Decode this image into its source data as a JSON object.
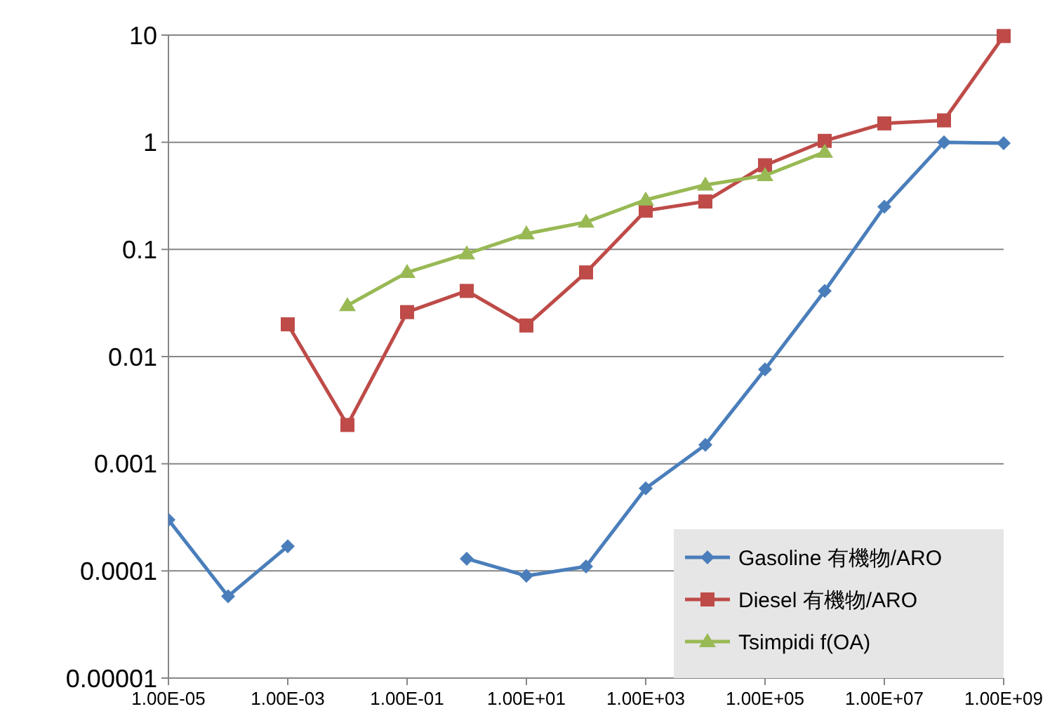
{
  "chart_data": {
    "type": "line",
    "log": "xy",
    "xlim": [
      1e-05,
      1000000000.0
    ],
    "ylim": [
      1e-05,
      10
    ],
    "xticks": [
      {
        "value": 1e-05,
        "label": "1.00E-05"
      },
      {
        "value": 0.001,
        "label": "1.00E-03"
      },
      {
        "value": 0.1,
        "label": "1.00E-01"
      },
      {
        "value": 10,
        "label": "1.00E+01"
      },
      {
        "value": 1000,
        "label": "1.00E+03"
      },
      {
        "value": 100000,
        "label": "1.00E+05"
      },
      {
        "value": 10000000,
        "label": "1.00E+07"
      },
      {
        "value": 1000000000,
        "label": "1.00E+09"
      }
    ],
    "yticks": [
      {
        "value": 1e-05,
        "label": "0.00001"
      },
      {
        "value": 0.0001,
        "label": "0.0001"
      },
      0.001,
      0.01,
      0.1,
      1,
      10
    ],
    "grid": "y",
    "legend": "bottom right",
    "line_style": "solid",
    "series": [
      {
        "name": "Gasoline 有機物/ARO",
        "color": "#4a7ebb",
        "marker": "diamond",
        "x": [
          1e-05,
          0.0001,
          0.001,
          0.01,
          0.1,
          1,
          10,
          100,
          1000,
          10000,
          100000,
          1000000,
          10000000,
          100000000,
          1000000000
        ],
        "values": [
          0.0003,
          5.8e-05,
          0.00017,
          null,
          null,
          0.00013,
          9e-05,
          0.00011,
          0.00059,
          0.0015,
          0.0076,
          0.041,
          0.25,
          1.0,
          0.98
        ]
      },
      {
        "name": "Diesel 有機物/ARO",
        "color": "#be4b48",
        "marker": "square",
        "x": [
          0.001,
          0.01,
          0.1,
          1,
          10,
          100,
          1000,
          10000,
          100000,
          1000000,
          10000000,
          100000000,
          1000000000
        ],
        "values": [
          0.02,
          0.0023,
          0.026,
          0.041,
          0.0195,
          0.061,
          0.23,
          0.28,
          0.61,
          1.03,
          1.5,
          1.6,
          9.8
        ]
      },
      {
        "name": "Tsimpidi f(OA)",
        "color": "#98b954",
        "marker": "triangle",
        "x": [
          0.01,
          0.1,
          1,
          10,
          100,
          1000,
          10000,
          100000,
          1000000
        ],
        "values": [
          0.03,
          0.061,
          0.091,
          0.14,
          0.18,
          0.29,
          0.4,
          0.49,
          0.81
        ]
      }
    ]
  }
}
